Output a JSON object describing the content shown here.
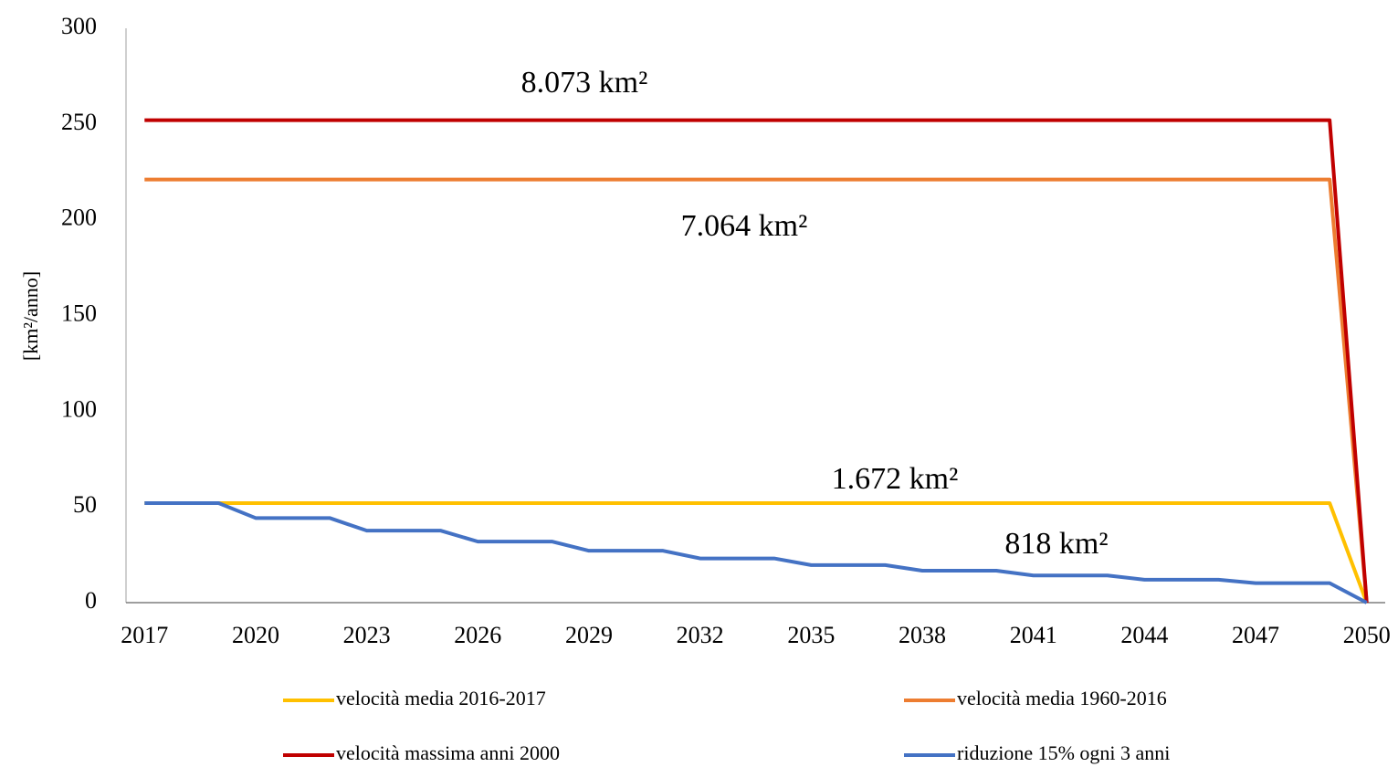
{
  "chart_data": {
    "type": "line",
    "y_label": "[km²/anno]",
    "annotations": [
      "8.073 km²",
      "7.064 km²",
      "1.672 km²",
      "818 km²"
    ],
    "x": [
      2017,
      2018,
      2019,
      2020,
      2021,
      2022,
      2023,
      2024,
      2025,
      2026,
      2027,
      2028,
      2029,
      2030,
      2031,
      2032,
      2033,
      2034,
      2035,
      2036,
      2037,
      2038,
      2039,
      2040,
      2041,
      2042,
      2043,
      2044,
      2045,
      2046,
      2047,
      2048,
      2049,
      2050
    ],
    "xlim": [
      2016.5,
      2050.5
    ],
    "xticks": [
      2017,
      2020,
      2023,
      2026,
      2029,
      2032,
      2035,
      2038,
      2041,
      2044,
      2047,
      2050
    ],
    "ylim": [
      0,
      300
    ],
    "yticks": [
      0,
      50,
      100,
      150,
      200,
      250,
      300
    ],
    "grid": false,
    "series": [
      {
        "name": "velocità media 2016-2017",
        "color": "#FFC000",
        "values": [
          52,
          52,
          52,
          52,
          52,
          52,
          52,
          52,
          52,
          52,
          52,
          52,
          52,
          52,
          52,
          52,
          52,
          52,
          52,
          52,
          52,
          52,
          52,
          52,
          52,
          52,
          52,
          52,
          52,
          52,
          52,
          52,
          52,
          0
        ]
      },
      {
        "name": "velocità media 1960-2016",
        "color": "#ED7D31",
        "values": [
          221,
          221,
          221,
          221,
          221,
          221,
          221,
          221,
          221,
          221,
          221,
          221,
          221,
          221,
          221,
          221,
          221,
          221,
          221,
          221,
          221,
          221,
          221,
          221,
          221,
          221,
          221,
          221,
          221,
          221,
          221,
          221,
          221,
          0
        ]
      },
      {
        "name": "velocità massima anni 2000",
        "color": "#C00000",
        "values": [
          252,
          252,
          252,
          252,
          252,
          252,
          252,
          252,
          252,
          252,
          252,
          252,
          252,
          252,
          252,
          252,
          252,
          252,
          252,
          252,
          252,
          252,
          252,
          252,
          252,
          252,
          252,
          252,
          252,
          252,
          252,
          252,
          252,
          0
        ]
      },
      {
        "name": "riduzione 15% ogni 3 anni",
        "color": "#4472C4",
        "values": [
          52,
          52,
          52,
          44.2,
          44.2,
          44.2,
          37.6,
          37.6,
          37.6,
          31.9,
          31.9,
          31.9,
          27.1,
          27.1,
          27.1,
          23.1,
          23.1,
          23.1,
          19.6,
          19.6,
          19.6,
          16.7,
          16.7,
          16.7,
          14.2,
          14.2,
          14.2,
          12.0,
          12.0,
          12.0,
          10.2,
          10.2,
          10.2,
          0
        ]
      }
    ]
  }
}
